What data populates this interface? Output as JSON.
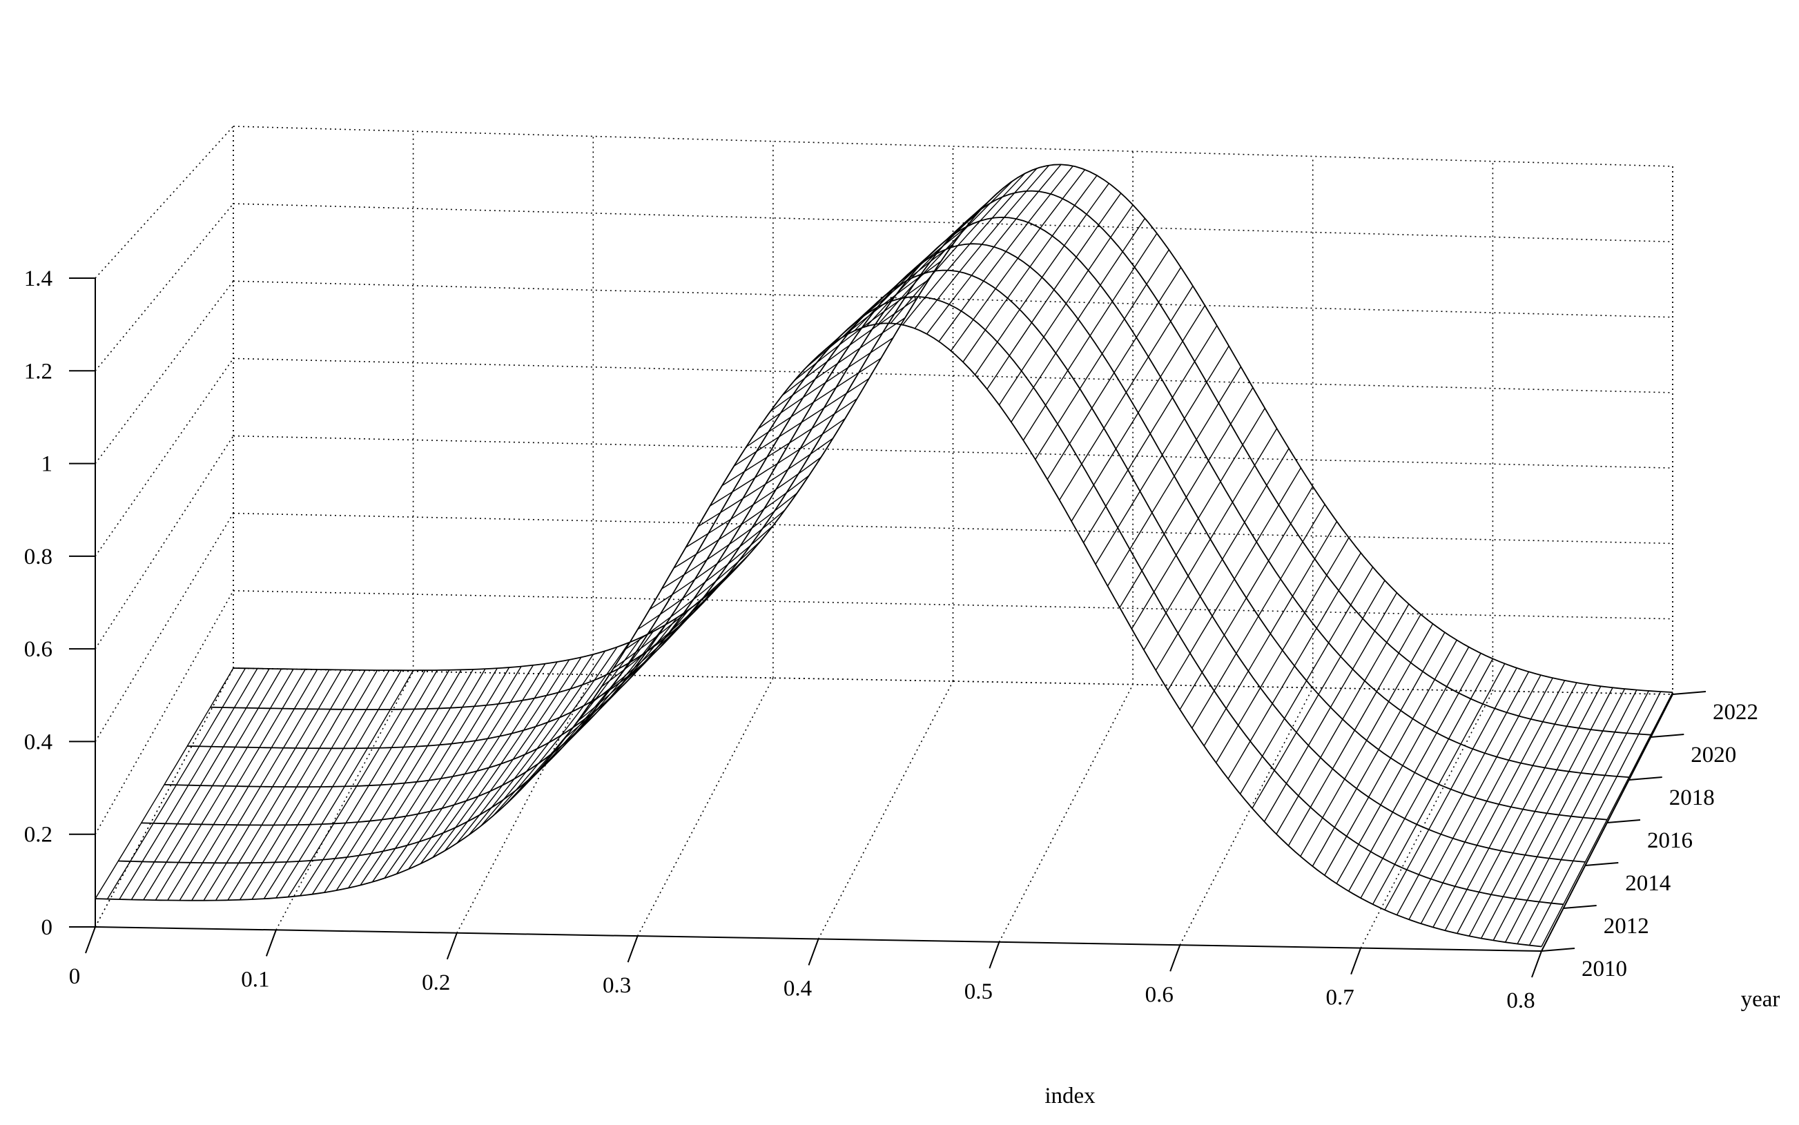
{
  "chart_data": {
    "type": "surface",
    "title": "",
    "xlabel": "index",
    "ylabel": "year",
    "zlabel": "",
    "x_ticks": [
      "0",
      "0.1",
      "0.2",
      "0.3",
      "0.4",
      "0.5",
      "0.6",
      "0.7",
      "0.8"
    ],
    "y_ticks": [
      "2010",
      "2012",
      "2014",
      "2016",
      "2018",
      "2020",
      "2022"
    ],
    "z_ticks": [
      "0",
      "0.2",
      "0.4",
      "0.6",
      "0.8",
      "1",
      "1.2",
      "1.4"
    ],
    "xlim": [
      0,
      0.8
    ],
    "ylim": [
      2010,
      2022
    ],
    "zlim": [
      0,
      1.4
    ],
    "grid": true,
    "series": [
      {
        "year": 2010,
        "mean": 0.44,
        "sd": 0.115,
        "peak": 1.32
      },
      {
        "year": 2012,
        "mean": 0.444,
        "sd": 0.112,
        "peak": 1.33
      },
      {
        "year": 2014,
        "mean": 0.447,
        "sd": 0.11,
        "peak": 1.33
      },
      {
        "year": 2016,
        "mean": 0.45,
        "sd": 0.108,
        "peak": 1.34
      },
      {
        "year": 2018,
        "mean": 0.453,
        "sd": 0.106,
        "peak": 1.35
      },
      {
        "year": 2020,
        "mean": 0.457,
        "sd": 0.104,
        "peak": 1.35
      },
      {
        "year": 2022,
        "mean": 0.46,
        "sd": 0.102,
        "peak": 1.36
      }
    ]
  }
}
